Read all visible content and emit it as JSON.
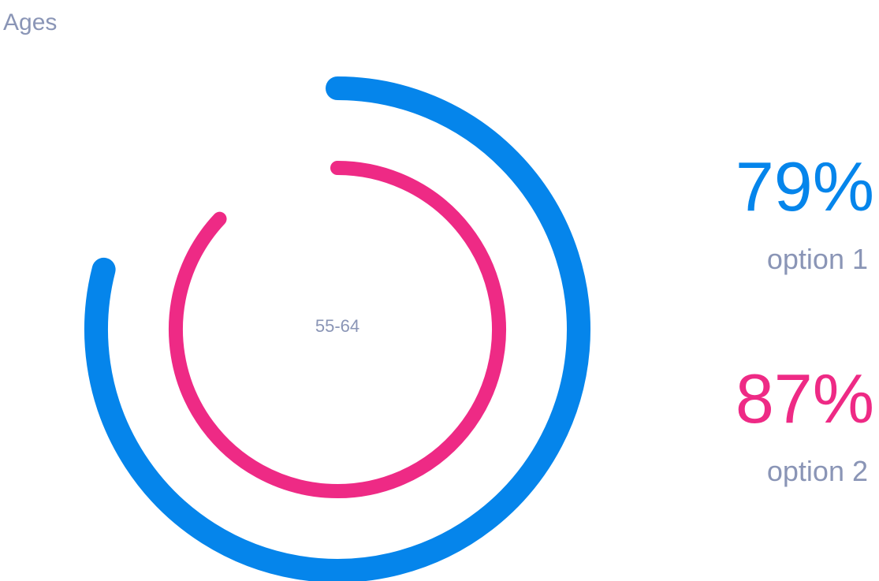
{
  "chart_data": {
    "type": "radial-bar",
    "title": "Ages",
    "center_label": "55-64",
    "series": [
      {
        "name": "option 1",
        "value": 79,
        "value_label": "79%",
        "color": "#0585eb"
      },
      {
        "name": "option 2",
        "value": 87,
        "value_label": "87%",
        "color": "#ee2a85"
      }
    ],
    "max": 100,
    "label_color": "#8a95b6"
  }
}
